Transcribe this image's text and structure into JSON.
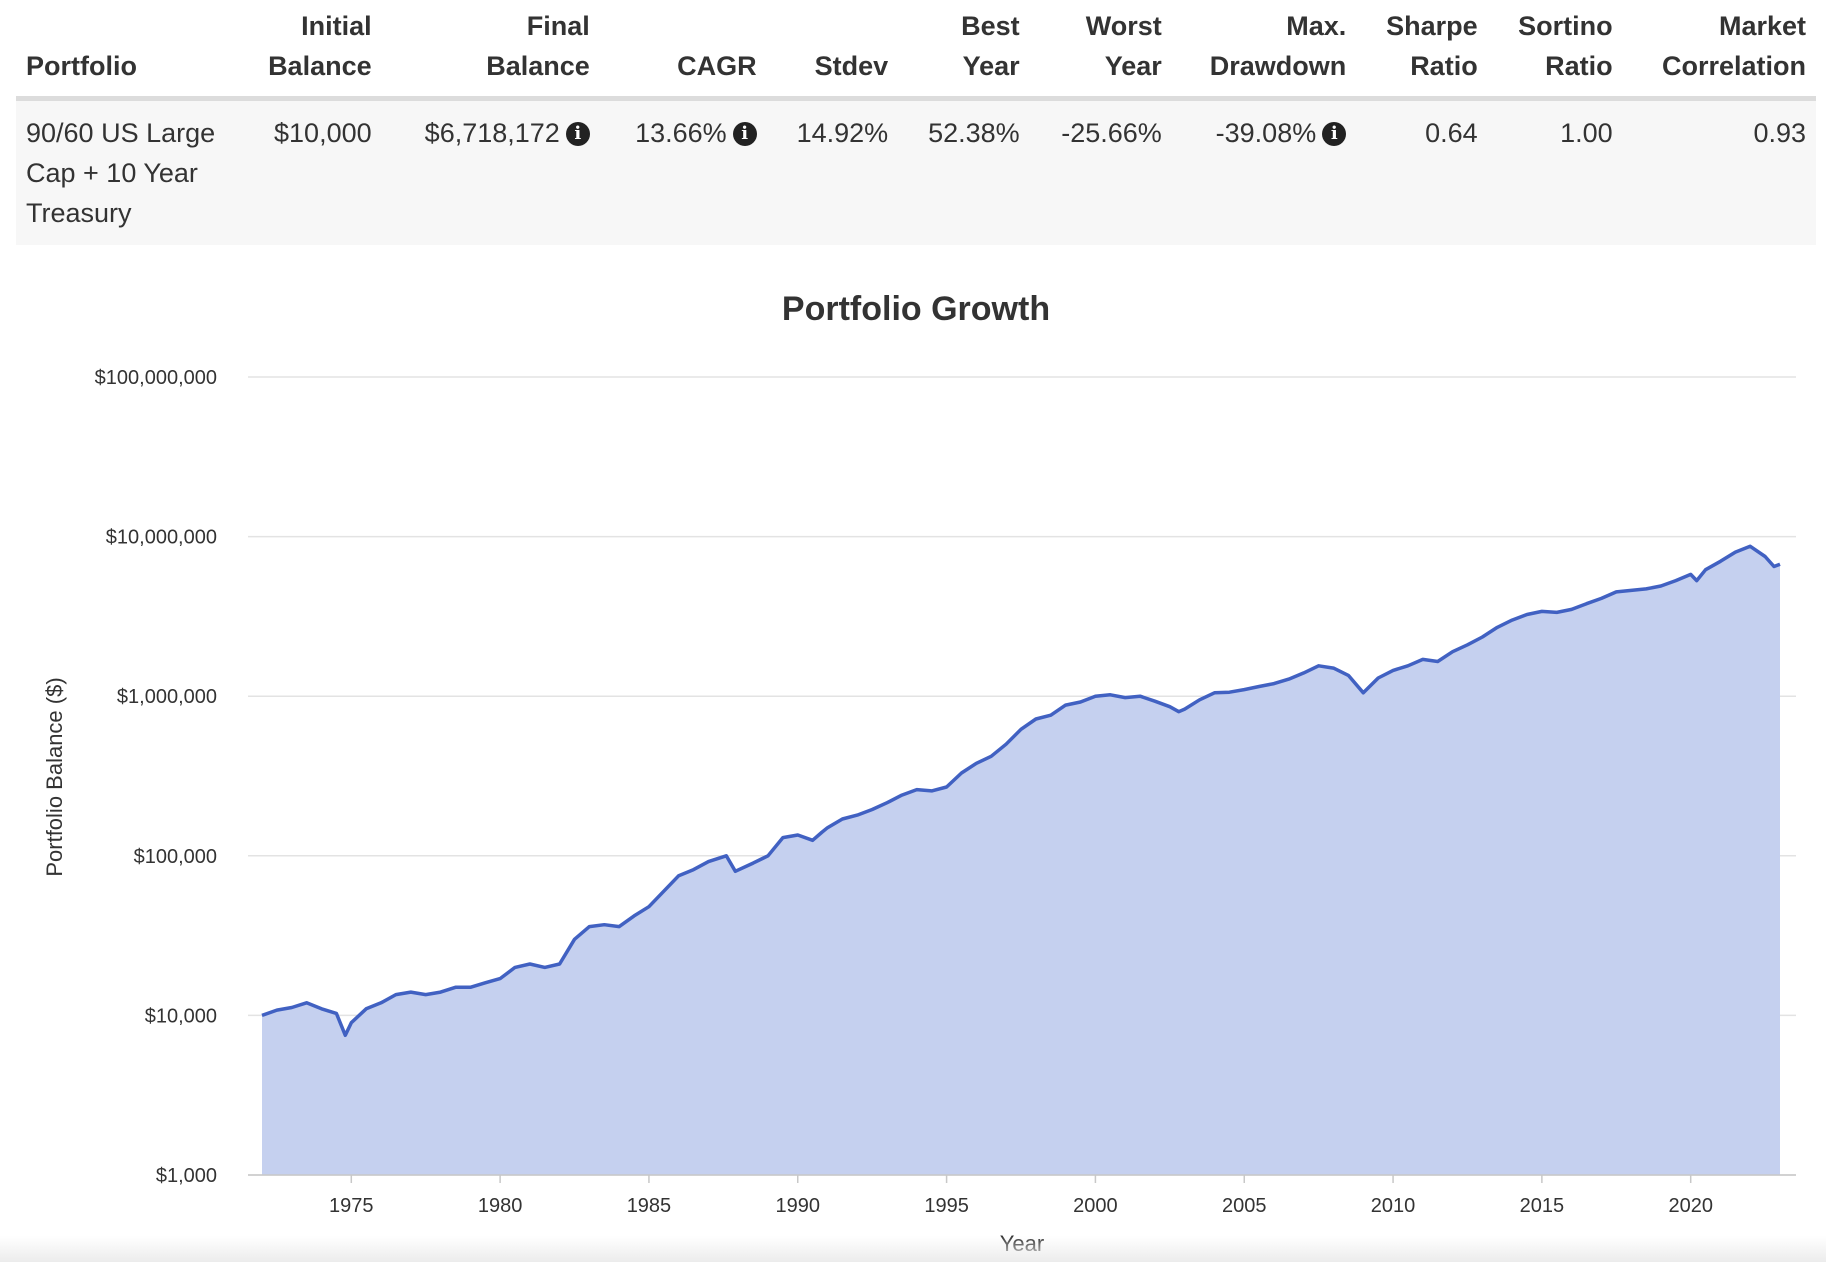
{
  "table": {
    "headers": {
      "portfolio": "Portfolio",
      "initial_line1": "Initial",
      "initial_line2": "Balance",
      "final_line1": "Final",
      "final_line2": "Balance",
      "cagr": "CAGR",
      "stdev": "Stdev",
      "best_line1": "Best",
      "best_line2": "Year",
      "worst_line1": "Worst",
      "worst_line2": "Year",
      "maxdd_line1": "Max.",
      "maxdd_line2": "Drawdown",
      "sharpe_line1": "Sharpe",
      "sharpe_line2": "Ratio",
      "sortino_line1": "Sortino",
      "sortino_line2": "Ratio",
      "market_line1": "Market",
      "market_line2": "Correlation"
    },
    "row": {
      "portfolio": "90/60 US Large Cap + 10 Year Treasury",
      "initial_balance": "$10,000",
      "final_balance": "$6,718,172",
      "cagr": "13.66%",
      "stdev": "14.92%",
      "best_year": "52.38%",
      "worst_year": "-25.66%",
      "max_drawdown": "-39.08%",
      "sharpe_ratio": "0.64",
      "sortino_ratio": "1.00",
      "market_correlation": "0.93"
    },
    "info_icon": "info-circle-icon"
  },
  "chart_data": {
    "type": "area",
    "title": "Portfolio Growth",
    "xlabel": "Year",
    "ylabel": "Portfolio Balance ($)",
    "y_scale": "log",
    "ylim": [
      1000,
      100000000
    ],
    "xlim": [
      1972,
      2023
    ],
    "y_ticks": [
      1000,
      10000,
      100000,
      1000000,
      10000000,
      100000000
    ],
    "y_tick_labels": [
      "$1,000",
      "$10,000",
      "$100,000",
      "$1,000,000",
      "$10,000,000",
      "$100,000,000"
    ],
    "x_ticks": [
      1975,
      1980,
      1985,
      1990,
      1995,
      2000,
      2005,
      2010,
      2015,
      2020
    ],
    "x_tick_labels": [
      "1975",
      "1980",
      "1985",
      "1990",
      "1995",
      "2000",
      "2005",
      "2010",
      "2015",
      "2020"
    ],
    "grid": true,
    "colors": {
      "line": "#4161c2",
      "fill": "#c5d0ef",
      "grid": "#e3e3e3"
    },
    "series": [
      {
        "x": [
          1972.0,
          1972.5,
          1973.0,
          1973.5,
          1974.0,
          1974.5,
          1974.8,
          1975.0,
          1975.5,
          1976.0,
          1976.5,
          1977.0,
          1977.5,
          1978.0,
          1978.5,
          1979.0,
          1979.5,
          1980.0,
          1980.5,
          1981.0,
          1981.5,
          1982.0,
          1982.5,
          1983.0,
          1983.5,
          1984.0,
          1984.5,
          1985.0,
          1985.5,
          1986.0,
          1986.5,
          1987.0,
          1987.6,
          1987.9,
          1988.5,
          1989.0,
          1989.5,
          1990.0,
          1990.5,
          1990.8,
          1991.0,
          1991.5,
          1992.0,
          1992.5,
          1993.0,
          1993.5,
          1994.0,
          1994.5,
          1995.0,
          1995.5,
          1996.0,
          1996.5,
          1997.0,
          1997.5,
          1998.0,
          1998.5,
          1999.0,
          1999.5,
          2000.0,
          2000.5,
          2001.0,
          2001.5,
          2002.0,
          2002.5,
          2002.8,
          2003.0,
          2003.5,
          2004.0,
          2004.5,
          2005.0,
          2005.5,
          2006.0,
          2006.5,
          2007.0,
          2007.5,
          2008.0,
          2008.5,
          2009.0,
          2009.5,
          2010.0,
          2010.5,
          2011.0,
          2011.5,
          2012.0,
          2012.5,
          2013.0,
          2013.5,
          2014.0,
          2014.5,
          2015.0,
          2015.5,
          2016.0,
          2016.5,
          2017.0,
          2017.5,
          2018.0,
          2018.5,
          2019.0,
          2019.5,
          2020.0,
          2020.2,
          2020.5,
          2021.0,
          2021.5,
          2022.0,
          2022.5,
          2022.8,
          2023.0
        ],
        "y": [
          10000,
          10800,
          11200,
          12000,
          11000,
          10300,
          7500,
          9000,
          11000,
          12000,
          13500,
          14000,
          13500,
          14000,
          15000,
          15000,
          16000,
          17000,
          20000,
          21000,
          20000,
          21000,
          30000,
          36000,
          37000,
          36000,
          42000,
          48000,
          60000,
          75000,
          82000,
          92000,
          100000,
          80000,
          90000,
          100000,
          130000,
          135000,
          125000,
          140000,
          150000,
          170000,
          180000,
          195000,
          215000,
          240000,
          260000,
          255000,
          270000,
          330000,
          380000,
          420000,
          500000,
          620000,
          720000,
          760000,
          880000,
          920000,
          1000000,
          1020000,
          980000,
          1000000,
          930000,
          860000,
          800000,
          830000,
          950000,
          1050000,
          1060000,
          1100000,
          1150000,
          1200000,
          1280000,
          1400000,
          1550000,
          1500000,
          1350000,
          1050000,
          1300000,
          1450000,
          1550000,
          1700000,
          1650000,
          1900000,
          2100000,
          2350000,
          2700000,
          3000000,
          3250000,
          3400000,
          3350000,
          3500000,
          3800000,
          4100000,
          4500000,
          4600000,
          4700000,
          4900000,
          5300000,
          5800000,
          5300000,
          6200000,
          7000000,
          8000000,
          8700000,
          7500000,
          6500000,
          6718172
        ]
      }
    ]
  }
}
